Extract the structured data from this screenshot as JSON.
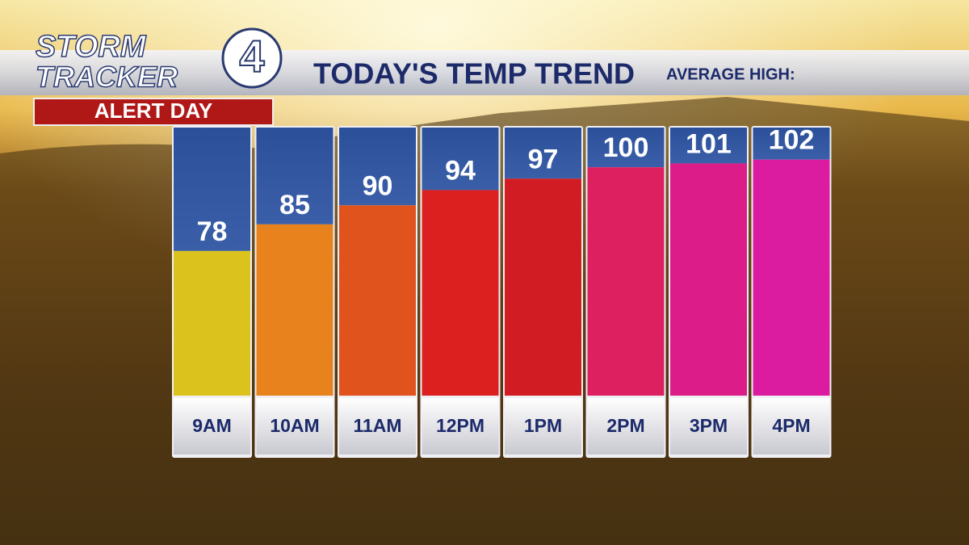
{
  "chart_data": {
    "type": "bar",
    "brand": {
      "line1": "STORM",
      "line2": "TRACKER",
      "number": "4"
    },
    "banner": "ALERT DAY",
    "title": "TODAY'S TEMP TREND",
    "average_high_label": "AVERAGE HIGH:",
    "categories": [
      "9AM",
      "10AM",
      "11AM",
      "12PM",
      "1PM",
      "2PM",
      "3PM",
      "4PM"
    ],
    "values": [
      78,
      85,
      90,
      94,
      97,
      100,
      101,
      102
    ],
    "colors": [
      "#dcc21c",
      "#e8821c",
      "#e0531c",
      "#dc1f1f",
      "#d21c24",
      "#dc2060",
      "#dc1c88",
      "#dc1ca0"
    ],
    "ylim": [
      40,
      110
    ]
  }
}
